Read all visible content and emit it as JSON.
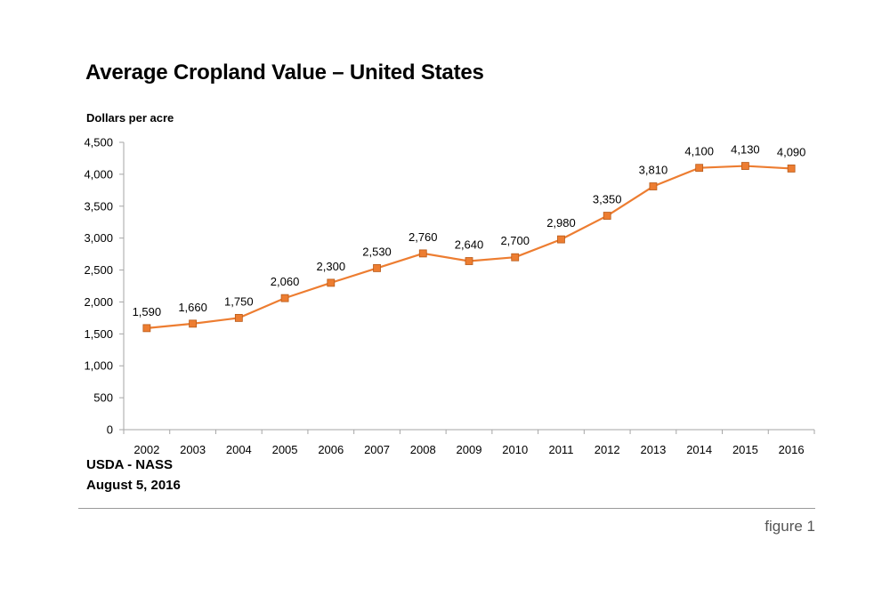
{
  "chart_data": {
    "type": "line",
    "title": "Average Cropland Value – United States",
    "ylabel": "Dollars per acre",
    "xlabel": "",
    "ylim": [
      0,
      4500
    ],
    "yticks": [
      0,
      500,
      1000,
      1500,
      2000,
      2500,
      3000,
      3500,
      4000,
      4500
    ],
    "ytick_labels": [
      "0",
      "500",
      "1,000",
      "1,500",
      "2,000",
      "2,500",
      "3,000",
      "3,500",
      "4,000",
      "4,500"
    ],
    "categories": [
      "2002",
      "2003",
      "2004",
      "2005",
      "2006",
      "2007",
      "2008",
      "2009",
      "2010",
      "2011",
      "2012",
      "2013",
      "2014",
      "2015",
      "2016"
    ],
    "series": [
      {
        "values": [
          1590,
          1660,
          1750,
          2060,
          2300,
          2530,
          2760,
          2640,
          2700,
          2980,
          3350,
          3810,
          4100,
          4130,
          4090
        ],
        "data_labels": [
          "1,590",
          "1,660",
          "1,750",
          "2,060",
          "2,300",
          "2,530",
          "2,760",
          "2,640",
          "2,700",
          "2,980",
          "3,350",
          "3,810",
          "4,100",
          "4,130",
          "4,090"
        ],
        "color": "#ed7d31",
        "marker": "square"
      }
    ],
    "grid": false,
    "legend": "none"
  },
  "source": {
    "line1": "USDA - NASS",
    "line2": "August 5, 2016"
  },
  "caption": "figure 1",
  "colors": {
    "series": "#ed7d31",
    "marker_edge": "#b85a18",
    "axis": "#a6a6a6"
  }
}
